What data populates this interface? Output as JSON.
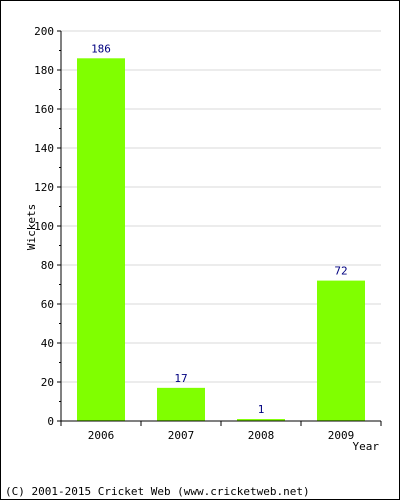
{
  "chart_data": {
    "type": "bar",
    "categories": [
      "2006",
      "2007",
      "2008",
      "2009"
    ],
    "values": [
      186,
      17,
      1,
      72
    ],
    "data_labels": [
      "186",
      "17",
      "1",
      "72"
    ],
    "xlabel": "Year",
    "ylabel": "Wickets",
    "ylim": [
      0,
      200
    ],
    "yticks": [
      0,
      20,
      40,
      60,
      80,
      100,
      120,
      140,
      160,
      180,
      200
    ],
    "ytick_labels": [
      "0",
      "20",
      "40",
      "60",
      "80",
      "100",
      "120",
      "140",
      "160",
      "180",
      "200"
    ],
    "grid": true,
    "bar_color": "#80ff00",
    "label_color": "#000080",
    "grid_color": "#d8d8d8"
  },
  "footer": "(C) 2001-2015 Cricket Web (www.cricketweb.net)"
}
